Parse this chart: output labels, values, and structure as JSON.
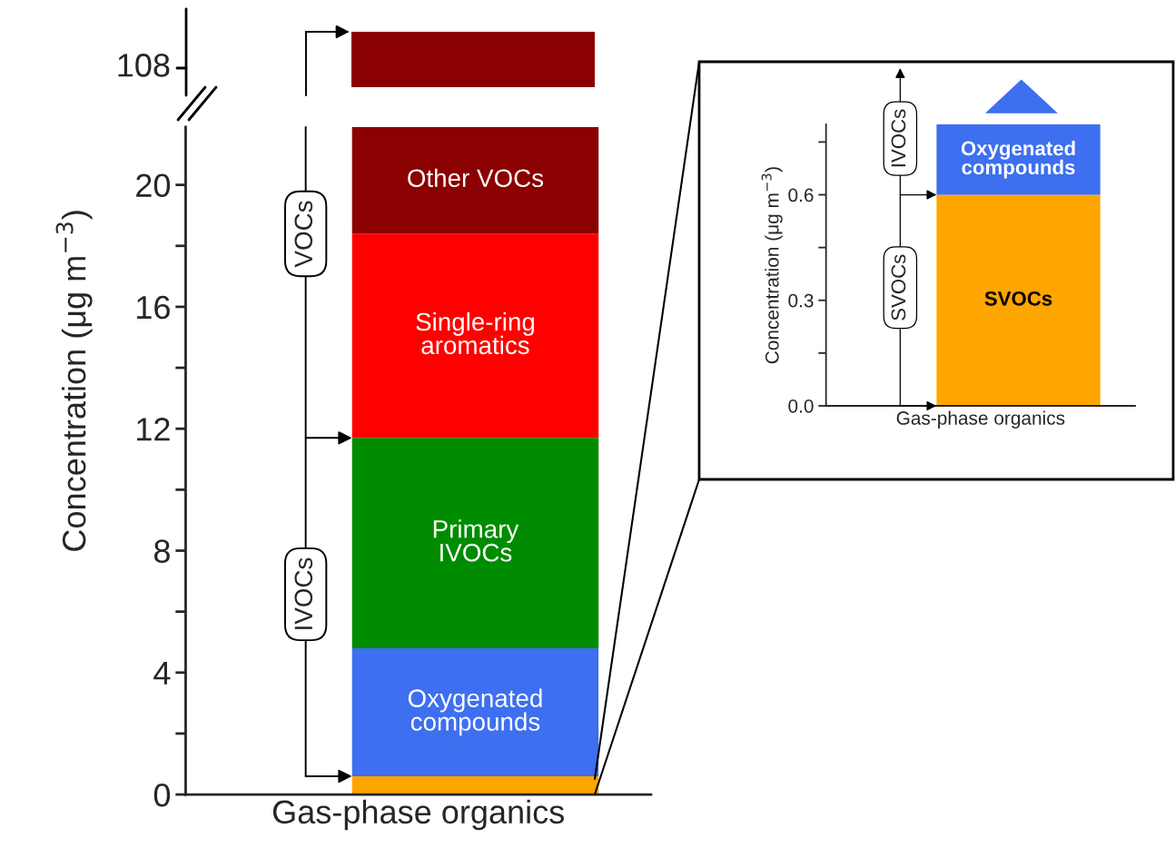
{
  "chart_data": [
    {
      "type": "bar",
      "stacked": true,
      "categories": [
        null
      ],
      "series": [
        {
          "color": "#ffa500",
          "values": [
            0.6
          ]
        },
        {
          "name": "Oxygenated\ncompounds",
          "color": "#3d6ff0",
          "values": [
            4.2
          ]
        },
        {
          "name": "Primary\nIVOCs",
          "color": "#008c00",
          "values": [
            6.9
          ]
        },
        {
          "name": "Single-ring\naromatics",
          "color": "#ff0000",
          "values": [
            6.7
          ]
        },
        {
          "name": "Other VOCs",
          "color": "#8b0000",
          "values": [
            3.5
          ]
        }
      ],
      "ylim": [
        0,
        21.9
      ],
      "yticks": [
        0,
        {
          "value": 2,
          "label": null
        },
        4,
        {
          "value": 6,
          "label": null
        },
        8,
        {
          "value": 10,
          "label": null
        },
        12,
        {
          "value": 14,
          "label": null
        },
        16,
        {
          "value": 18,
          "label": null
        },
        20
      ],
      "xlabel": "Gas-phase organics",
      "ylabel": "Concentration (μg m$^{−3}$)",
      "annotations": [
        "VOCs",
        "IVOCs",
        "108"
      ],
      "tick_labels": "y"
    },
    {
      "type": "bar",
      "stacked": true,
      "categories": [
        null
      ],
      "series": [
        {
          "name": "SVOCs",
          "color": "#ffa500",
          "values": [
            0.6
          ]
        },
        {
          "name": "Oxygenated\ncompounds",
          "color": "#3d6ff0",
          "values": [
            0.2
          ]
        }
      ],
      "ylim": [
        0,
        0.8
      ],
      "yticks": [
        {
          "value": 0,
          "label": "0.0"
        },
        {
          "value": 0.15,
          "label": null
        },
        {
          "value": 0.3,
          "label": "0.3"
        },
        {
          "value": 0.45,
          "label": null
        },
        {
          "value": 0.6,
          "label": "0.6"
        },
        {
          "value": 0.75,
          "label": null
        }
      ],
      "xlabel": "Gas-phase organics",
      "ylabel": "Concentration (μg m$^{−3}$)",
      "annotations": [
        "IVOCs",
        "SVOCs"
      ],
      "tick_labels": "y"
    }
  ]
}
